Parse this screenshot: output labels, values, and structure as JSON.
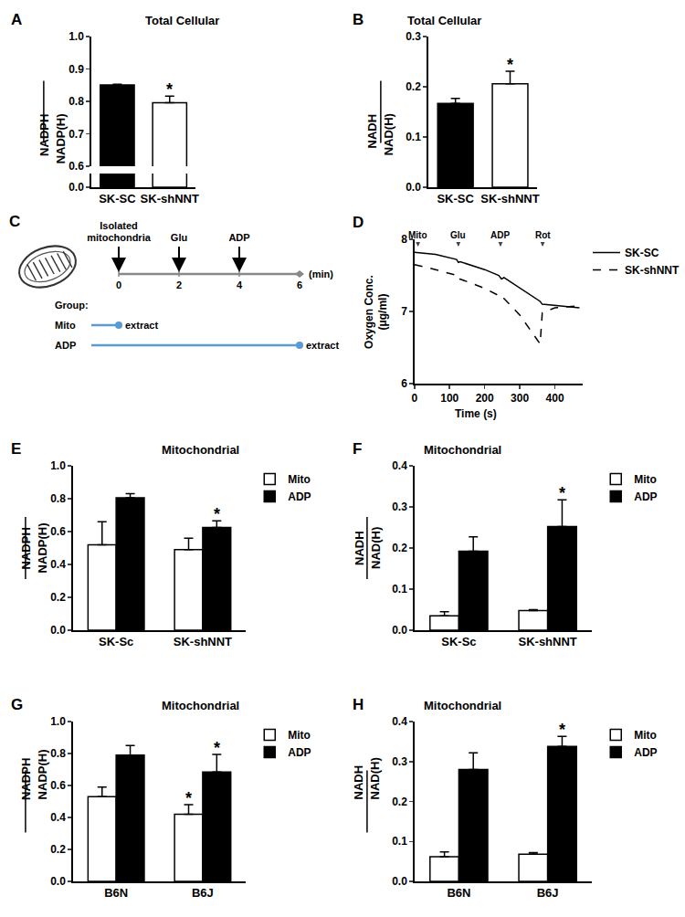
{
  "chart_data": [
    {
      "panel": "A",
      "type": "bar",
      "title": "Total Cellular",
      "y_label": {
        "numerator": "NADPH",
        "denominator": "NADP(H)"
      },
      "categories": [
        "SK-SC",
        "SK-shNNT"
      ],
      "values": [
        0.851,
        0.796
      ],
      "errors": [
        0.002,
        0.02
      ],
      "colors": [
        "#000000",
        "#ffffff"
      ],
      "ylim": [
        0.6,
        1
      ],
      "yticks": [
        0.6,
        0.7,
        0.8,
        0.9,
        {
          "value": 1,
          "label": "1.0"
        }
      ],
      "lower_ylim": [
        0,
        0.02
      ],
      "lower_yticks": [
        {
          "value": 0,
          "label": "0.0"
        }
      ],
      "annotations": [
        {
          "category": "SK-shNNT",
          "text": "*"
        }
      ],
      "grid": false
    },
    {
      "panel": "B",
      "type": "bar",
      "title": "Total Cellular",
      "y_label": {
        "numerator": "NADH",
        "denominator": "NAD(H)"
      },
      "categories": [
        "SK-SC",
        "SK-shNNT"
      ],
      "values": [
        0.167,
        0.206
      ],
      "errors": [
        0.01,
        0.025
      ],
      "colors": [
        "#000000",
        "#ffffff"
      ],
      "ylim": [
        0,
        0.3
      ],
      "yticks": [
        {
          "value": 0,
          "label": "0.0"
        },
        0.1,
        0.2,
        0.3
      ],
      "annotations": [
        {
          "category": "SK-shNNT",
          "text": "*"
        }
      ],
      "grid": false
    },
    {
      "panel": "D",
      "type": "line",
      "x_label": "Time (s)",
      "y_label": [
        "Oxygen Conc.",
        "(μg/ml)"
      ],
      "xlim": [
        0,
        480
      ],
      "xticks": [
        0,
        100,
        200,
        300,
        400
      ],
      "ylim": [
        6,
        8
      ],
      "yticks": [
        6,
        7,
        8
      ],
      "legend": "top-right",
      "grid": false,
      "events": [
        {
          "x": 10,
          "label": "Mito"
        },
        {
          "x": 125,
          "label": "Glu"
        },
        {
          "x": 245,
          "label": "ADP"
        },
        {
          "x": 365,
          "label": "Rot"
        }
      ],
      "series": [
        {
          "name": "SK-SC",
          "color": "#000000",
          "line_style": "solid",
          "x": [
            0,
            60,
            120,
            125,
            130,
            200,
            240,
            248,
            255,
            300,
            358,
            364,
            400,
            470
          ],
          "values": [
            7.82,
            7.79,
            7.72,
            7.68,
            7.69,
            7.58,
            7.5,
            7.45,
            7.47,
            7.33,
            7.14,
            7.1,
            7.08,
            7.05
          ]
        },
        {
          "name": "SK-shNNT",
          "color": "#000000",
          "line_style": "dashed",
          "x": [
            0,
            60,
            120,
            125,
            130,
            200,
            240,
            248,
            255,
            300,
            358,
            364,
            400,
            470
          ],
          "values": [
            7.65,
            7.58,
            7.5,
            7.44,
            7.45,
            7.32,
            7.22,
            7.17,
            7.18,
            6.95,
            6.55,
            6.98,
            7.05,
            7.08
          ]
        }
      ]
    },
    {
      "panel": "E",
      "type": "bar",
      "title": "Mitochondrial",
      "y_label": {
        "numerator": "NADPH",
        "denominator": "NADP(H)"
      },
      "categories": [
        "SK-Sc",
        "SK-shNNT"
      ],
      "legend": "top-right",
      "grid": false,
      "ylim": [
        0,
        1
      ],
      "yticks": [
        {
          "value": 0,
          "label": "0.0"
        },
        0.2,
        0.4,
        0.6,
        0.8,
        {
          "value": 1,
          "label": "1.0"
        }
      ],
      "series": [
        {
          "name": "Mito",
          "color": "#ffffff",
          "values": [
            0.52,
            0.49
          ],
          "errors": [
            0.14,
            0.07
          ]
        },
        {
          "name": "ADP",
          "color": "#000000",
          "values": [
            0.805,
            0.625
          ],
          "errors": [
            0.025,
            0.04
          ]
        }
      ],
      "annotations": [
        {
          "series": "ADP",
          "category": "SK-shNNT",
          "text": "*"
        }
      ]
    },
    {
      "panel": "F",
      "type": "bar",
      "title": "Mitochondrial",
      "y_label": {
        "numerator": "NADH",
        "denominator": "NAD(H)"
      },
      "categories": [
        "SK-Sc",
        "SK-shNNT"
      ],
      "legend": "top-right",
      "grid": false,
      "ylim": [
        0,
        0.4
      ],
      "yticks": [
        {
          "value": 0,
          "label": "0.0"
        },
        0.1,
        0.2,
        0.3,
        0.4
      ],
      "series": [
        {
          "name": "Mito",
          "color": "#ffffff",
          "values": [
            0.035,
            0.048
          ],
          "errors": [
            0.01,
            0.002
          ]
        },
        {
          "name": "ADP",
          "color": "#000000",
          "values": [
            0.192,
            0.252
          ],
          "errors": [
            0.035,
            0.065
          ]
        }
      ],
      "annotations": [
        {
          "series": "ADP",
          "category": "SK-shNNT",
          "text": "*"
        }
      ]
    },
    {
      "panel": "G",
      "type": "bar",
      "title": "Mitochondrial",
      "y_label": {
        "numerator": "NADPH",
        "denominator": "NADP(H)"
      },
      "categories": [
        "B6N",
        "B6J"
      ],
      "legend": "top-right",
      "grid": false,
      "ylim": [
        0,
        1
      ],
      "yticks": [
        {
          "value": 0,
          "label": "0.0"
        },
        0.2,
        0.4,
        0.6,
        0.8,
        {
          "value": 1,
          "label": "1.0"
        }
      ],
      "series": [
        {
          "name": "Mito",
          "color": "#ffffff",
          "values": [
            0.53,
            0.42
          ],
          "errors": [
            0.06,
            0.06
          ]
        },
        {
          "name": "ADP",
          "color": "#000000",
          "values": [
            0.79,
            0.685
          ],
          "errors": [
            0.06,
            0.11
          ]
        }
      ],
      "annotations": [
        {
          "series": "Mito",
          "category": "B6J",
          "text": "*"
        },
        {
          "series": "ADP",
          "category": "B6J",
          "text": "*"
        }
      ]
    },
    {
      "panel": "H",
      "type": "bar",
      "title": "Mitochondrial",
      "y_label": {
        "numerator": "NADH",
        "denominator": "NAD(H)"
      },
      "categories": [
        "B6N",
        "B6J"
      ],
      "legend": "top-right",
      "grid": false,
      "ylim": [
        0,
        0.4
      ],
      "yticks": [
        {
          "value": 0,
          "label": "0.0"
        },
        0.1,
        0.2,
        0.3,
        0.4
      ],
      "series": [
        {
          "name": "Mito",
          "color": "#ffffff",
          "values": [
            0.062,
            0.068
          ],
          "errors": [
            0.012,
            0.004
          ]
        },
        {
          "name": "ADP",
          "color": "#000000",
          "values": [
            0.28,
            0.338
          ],
          "errors": [
            0.042,
            0.025
          ]
        }
      ],
      "annotations": [
        {
          "series": "ADP",
          "category": "B6J",
          "text": "*"
        }
      ]
    }
  ],
  "diagram": {
    "panel": "C",
    "timeline": {
      "ticks": [
        0,
        2,
        4,
        6
      ],
      "unit": "(min)"
    },
    "events": [
      {
        "time": 0,
        "label": [
          "Isolated",
          "mitochondria"
        ]
      },
      {
        "time": 2,
        "label": [
          "Glu"
        ]
      },
      {
        "time": 4,
        "label": [
          "ADP"
        ]
      }
    ],
    "groups_label": "Group:",
    "groups": [
      {
        "name": "Mito",
        "extract_at": 0,
        "label": "extract"
      },
      {
        "name": "ADP",
        "extract_at": 6,
        "label": "extract"
      }
    ]
  }
}
